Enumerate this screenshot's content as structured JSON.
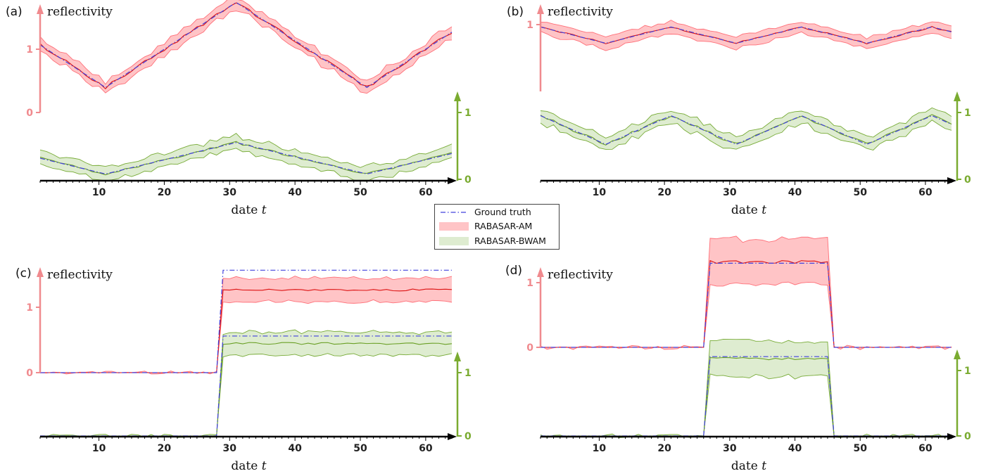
{
  "colors": {
    "ground_truth": "#4040dd",
    "am_line": "#dd1111",
    "am_fill": "#ffc4c6",
    "am_edge": "#ff6f78",
    "bwam_line": "#6aa025",
    "bwam_fill": "#deecd0",
    "bwam_edge": "#77ab36",
    "left_axis": "#f08a8e",
    "right_axis": "#7aab30",
    "time_axis": "#000000"
  },
  "legend": {
    "position": "center",
    "items": [
      {
        "label": "Ground truth",
        "style": "dash-dot-line",
        "color": "#4040dd"
      },
      {
        "label": "RABASAR-AM",
        "style": "filled-band",
        "color": "#ffc4c6"
      },
      {
        "label": "RABASAR-BWAM",
        "style": "filled-band",
        "color": "#deecd0"
      }
    ]
  },
  "chart_data": [
    {
      "panel_label": "(a)",
      "type": "line",
      "pattern": "triangle",
      "period": 40,
      "phase": 11,
      "ylabel": "reflectivity",
      "xlabel": "date",
      "xlabel_var": "t",
      "xlim": [
        1,
        64
      ],
      "xticks": [
        10,
        20,
        30,
        40,
        50,
        60
      ],
      "left_axis": {
        "ticks": [
          "0",
          "1"
        ]
      },
      "right_axis": {
        "ticks": [
          "0",
          "1"
        ]
      },
      "am": {
        "low": 0.33,
        "high": 1.45,
        "band_width": 0.08,
        "noise": 0.07
      },
      "bwam": {
        "low": 0.08,
        "high": 0.55,
        "band_width": 0.1,
        "noise": 0.06
      }
    },
    {
      "panel_label": "(b)",
      "type": "line",
      "pattern": "triangle",
      "period": 20,
      "phase": 11,
      "ylabel": "reflectivity",
      "xlabel": "date",
      "xlabel_var": "t",
      "xlim": [
        1,
        64
      ],
      "xticks": [
        10,
        20,
        30,
        40,
        50,
        60
      ],
      "left_axis": {
        "ticks": [
          "1"
        ]
      },
      "right_axis": {
        "ticks": [
          "0",
          "1"
        ]
      },
      "am": {
        "low": 0.55,
        "high": 0.88,
        "band_width": 0.12,
        "noise": 0.06
      },
      "bwam": {
        "low": 0.47,
        "high": 0.9,
        "band_width": 0.1,
        "noise": 0.07
      }
    },
    {
      "panel_label": "(c)",
      "type": "line",
      "pattern": "step-up",
      "change_at": 28.5,
      "ylabel": "reflectivity",
      "xlabel": "date",
      "xlabel_var": "t",
      "xlim": [
        1,
        64
      ],
      "xticks": [
        10,
        20,
        30,
        40,
        50,
        60
      ],
      "left_axis": {
        "ticks": [
          "0",
          "1"
        ]
      },
      "right_axis": {
        "ticks": [
          "0",
          "1"
        ]
      },
      "am": {
        "base": 0.0,
        "truth_level": 1.55,
        "estimate_level": 1.25,
        "band_width": 0.18,
        "noise": 0.05
      },
      "bwam": {
        "base": 0.0,
        "truth_level": 1.48,
        "estimate_level": 1.37,
        "band_width": 0.17,
        "noise": 0.05
      }
    },
    {
      "panel_label": "(d)",
      "type": "line",
      "pattern": "pulse",
      "change_at": 26.5,
      "change_back_at": 45.5,
      "ylabel": "reflectivity",
      "xlabel": "date",
      "xlabel_var": "t",
      "xlim": [
        1,
        64
      ],
      "xticks": [
        10,
        20,
        30,
        40,
        50,
        60
      ],
      "left_axis": {
        "ticks": [
          "0",
          "1"
        ]
      },
      "right_axis": {
        "ticks": [
          "0",
          "1"
        ]
      },
      "am": {
        "base": 0.0,
        "truth_level": 1.3,
        "estimate_level": 1.32,
        "band_width": 0.35,
        "noise": 0.07
      },
      "bwam": {
        "base": 0.0,
        "truth_level": 1.2,
        "estimate_level": 1.17,
        "band_width": 0.27,
        "noise": 0.06
      }
    }
  ]
}
